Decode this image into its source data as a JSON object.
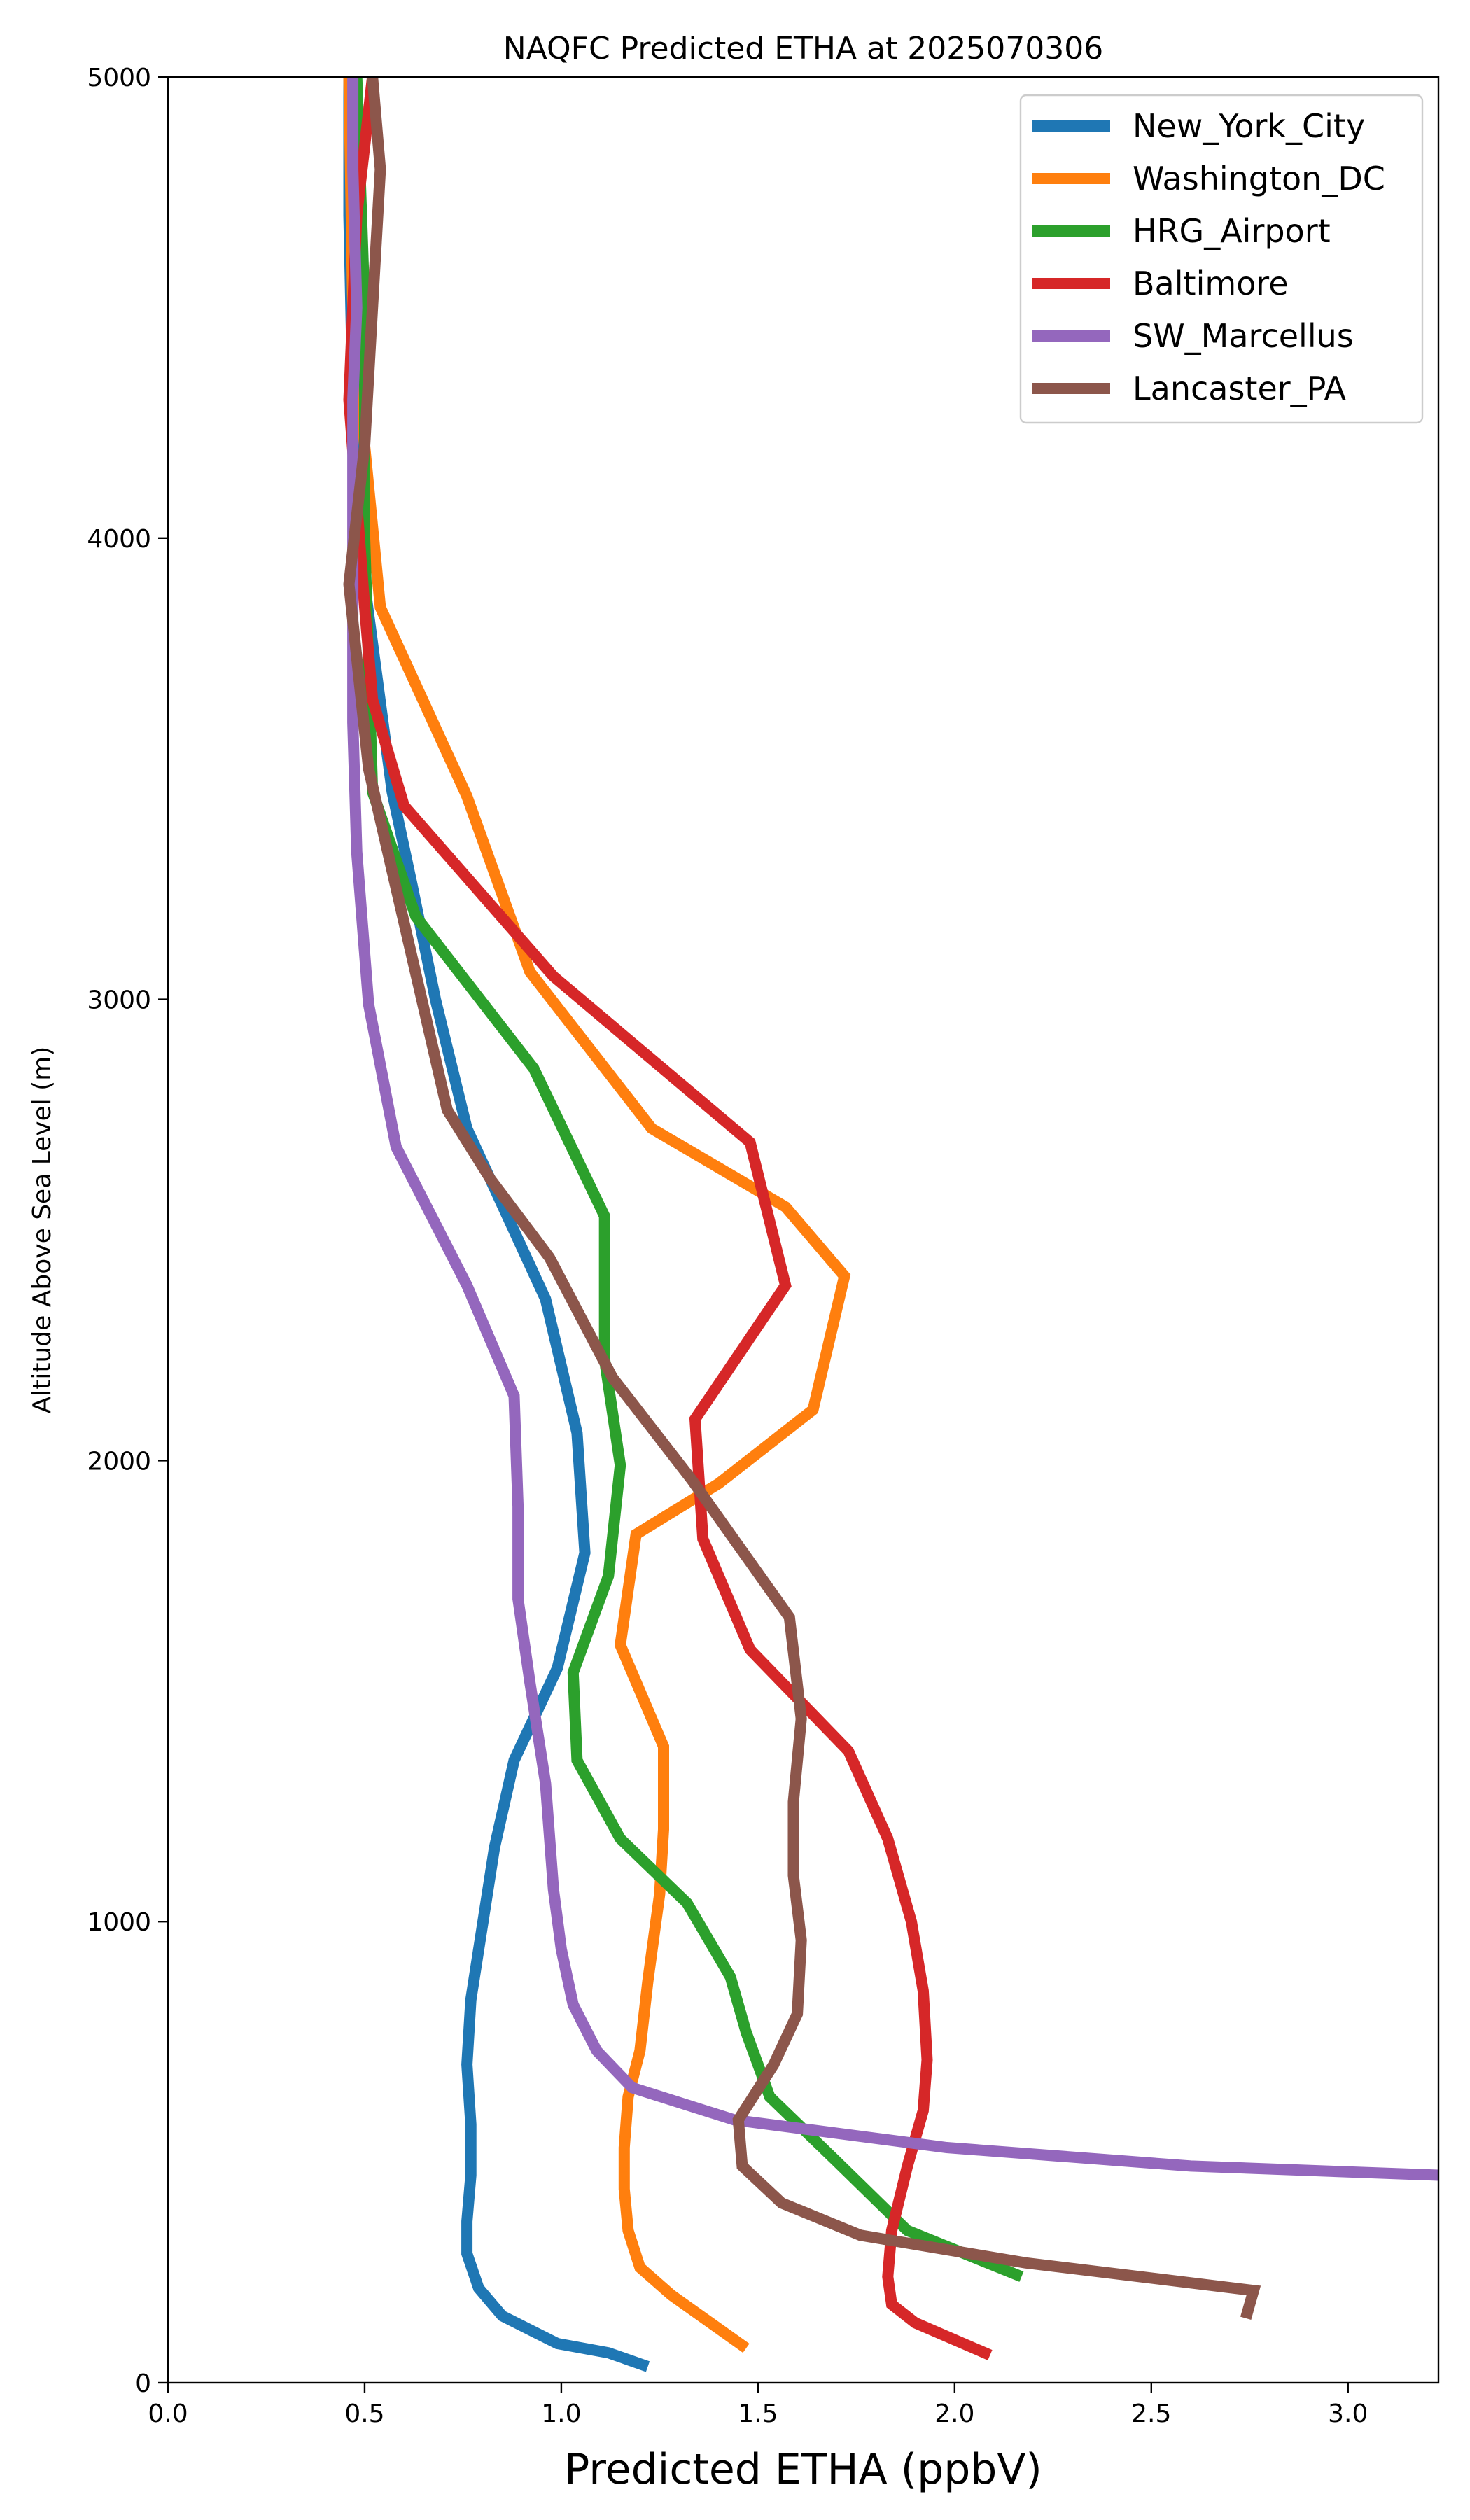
{
  "chart_data": {
    "type": "line",
    "title": "NAQFC Predicted ETHA at 2025070306",
    "xlabel": "Predicted ETHA (ppbV)",
    "ylabel": "Altitude Above Sea Level (m)",
    "xlim": [
      0.0,
      3.23
    ],
    "ylim": [
      0,
      5000
    ],
    "xticks": [
      0.0,
      0.5,
      1.0,
      1.5,
      2.0,
      2.5,
      3.0
    ],
    "xtick_labels": [
      "0.0",
      "0.5",
      "1.0",
      "1.5",
      "2.0",
      "2.5",
      "3.0"
    ],
    "yticks": [
      0,
      1000,
      2000,
      3000,
      4000,
      5000
    ],
    "ytick_labels": [
      "0",
      "1000",
      "2000",
      "3000",
      "4000",
      "5000"
    ],
    "grid": false,
    "legend_position": "top-right",
    "series": [
      {
        "name": "New_York_City",
        "color": "#1f77b4",
        "points": [
          [
            1.22,
            35
          ],
          [
            1.12,
            65
          ],
          [
            0.99,
            85
          ],
          [
            0.85,
            145
          ],
          [
            0.79,
            205
          ],
          [
            0.76,
            280
          ],
          [
            0.76,
            350
          ],
          [
            0.77,
            450
          ],
          [
            0.77,
            560
          ],
          [
            0.76,
            690
          ],
          [
            0.77,
            830
          ],
          [
            0.83,
            1160
          ],
          [
            0.88,
            1350
          ],
          [
            0.99,
            1550
          ],
          [
            1.06,
            1800
          ],
          [
            1.04,
            2060
          ],
          [
            0.96,
            2350
          ],
          [
            0.76,
            2720
          ],
          [
            0.68,
            3000
          ],
          [
            0.62,
            3250
          ],
          [
            0.57,
            3450
          ],
          [
            0.5,
            3900
          ],
          [
            0.47,
            4300
          ],
          [
            0.46,
            4700
          ],
          [
            0.46,
            5000
          ]
        ]
      },
      {
        "name": "Washington_DC",
        "color": "#ff7f0e",
        "points": [
          [
            1.47,
            75
          ],
          [
            1.28,
            190
          ],
          [
            1.2,
            250
          ],
          [
            1.17,
            330
          ],
          [
            1.16,
            420
          ],
          [
            1.16,
            510
          ],
          [
            1.17,
            620
          ],
          [
            1.2,
            720
          ],
          [
            1.22,
            870
          ],
          [
            1.25,
            1060
          ],
          [
            1.26,
            1200
          ],
          [
            1.26,
            1380
          ],
          [
            1.15,
            1600
          ],
          [
            1.19,
            1840
          ],
          [
            1.4,
            1950
          ],
          [
            1.64,
            2110
          ],
          [
            1.72,
            2400
          ],
          [
            1.57,
            2550
          ],
          [
            1.23,
            2720
          ],
          [
            0.92,
            3060
          ],
          [
            0.76,
            3440
          ],
          [
            0.54,
            3850
          ],
          [
            0.5,
            4200
          ],
          [
            0.47,
            4500
          ],
          [
            0.46,
            5000
          ]
        ]
      },
      {
        "name": "HRG_Airport",
        "color": "#2ca02c",
        "points": [
          [
            2.17,
            230
          ],
          [
            1.88,
            330
          ],
          [
            1.7,
            480
          ],
          [
            1.53,
            620
          ],
          [
            1.47,
            760
          ],
          [
            1.43,
            880
          ],
          [
            1.32,
            1040
          ],
          [
            1.15,
            1180
          ],
          [
            1.04,
            1350
          ],
          [
            1.03,
            1540
          ],
          [
            1.12,
            1750
          ],
          [
            1.15,
            1990
          ],
          [
            1.11,
            2220
          ],
          [
            1.11,
            2530
          ],
          [
            0.93,
            2850
          ],
          [
            0.63,
            3180
          ],
          [
            0.52,
            3450
          ],
          [
            0.5,
            4000
          ],
          [
            0.5,
            4500
          ],
          [
            0.48,
            5000
          ]
        ]
      },
      {
        "name": "Baltimore",
        "color": "#d62728",
        "points": [
          [
            2.09,
            60
          ],
          [
            1.9,
            130
          ],
          [
            1.84,
            170
          ],
          [
            1.83,
            230
          ],
          [
            1.84,
            330
          ],
          [
            1.88,
            470
          ],
          [
            1.92,
            590
          ],
          [
            1.93,
            700
          ],
          [
            1.92,
            850
          ],
          [
            1.89,
            1000
          ],
          [
            1.83,
            1180
          ],
          [
            1.73,
            1370
          ],
          [
            1.48,
            1590
          ],
          [
            1.36,
            1830
          ],
          [
            1.34,
            2090
          ],
          [
            1.57,
            2380
          ],
          [
            1.48,
            2690
          ],
          [
            0.98,
            3050
          ],
          [
            0.6,
            3420
          ],
          [
            0.52,
            3650
          ],
          [
            0.5,
            3850
          ],
          [
            0.46,
            4300
          ],
          [
            0.48,
            4700
          ],
          [
            0.52,
            5000
          ]
        ]
      },
      {
        "name": "SW_Marcellus",
        "color": "#9467bd",
        "points": [
          [
            3.23,
            450
          ],
          [
            2.6,
            470
          ],
          [
            1.98,
            510
          ],
          [
            1.44,
            570
          ],
          [
            1.18,
            640
          ],
          [
            1.09,
            720
          ],
          [
            1.03,
            820
          ],
          [
            1.0,
            940
          ],
          [
            0.98,
            1070
          ],
          [
            0.96,
            1300
          ],
          [
            0.92,
            1520
          ],
          [
            0.89,
            1700
          ],
          [
            0.89,
            1900
          ],
          [
            0.88,
            2140
          ],
          [
            0.76,
            2380
          ],
          [
            0.58,
            2680
          ],
          [
            0.51,
            2990
          ],
          [
            0.48,
            3320
          ],
          [
            0.47,
            3600
          ],
          [
            0.47,
            4000
          ],
          [
            0.47,
            4300
          ],
          [
            0.48,
            4500
          ],
          [
            0.47,
            4800
          ],
          [
            0.47,
            5000
          ]
        ]
      },
      {
        "name": "Lancaster_PA",
        "color": "#8c564b",
        "points": [
          [
            2.74,
            140
          ],
          [
            2.76,
            200
          ],
          [
            2.18,
            260
          ],
          [
            1.76,
            320
          ],
          [
            1.56,
            390
          ],
          [
            1.46,
            470
          ],
          [
            1.45,
            570
          ],
          [
            1.54,
            690
          ],
          [
            1.6,
            800
          ],
          [
            1.61,
            960
          ],
          [
            1.59,
            1100
          ],
          [
            1.59,
            1260
          ],
          [
            1.61,
            1440
          ],
          [
            1.58,
            1660
          ],
          [
            1.33,
            1960
          ],
          [
            1.13,
            2180
          ],
          [
            0.97,
            2440
          ],
          [
            0.82,
            2610
          ],
          [
            0.71,
            2760
          ],
          [
            0.51,
            3500
          ],
          [
            0.46,
            3900
          ],
          [
            0.5,
            4200
          ],
          [
            0.52,
            4500
          ],
          [
            0.54,
            4800
          ],
          [
            0.52,
            5000
          ]
        ]
      }
    ]
  }
}
